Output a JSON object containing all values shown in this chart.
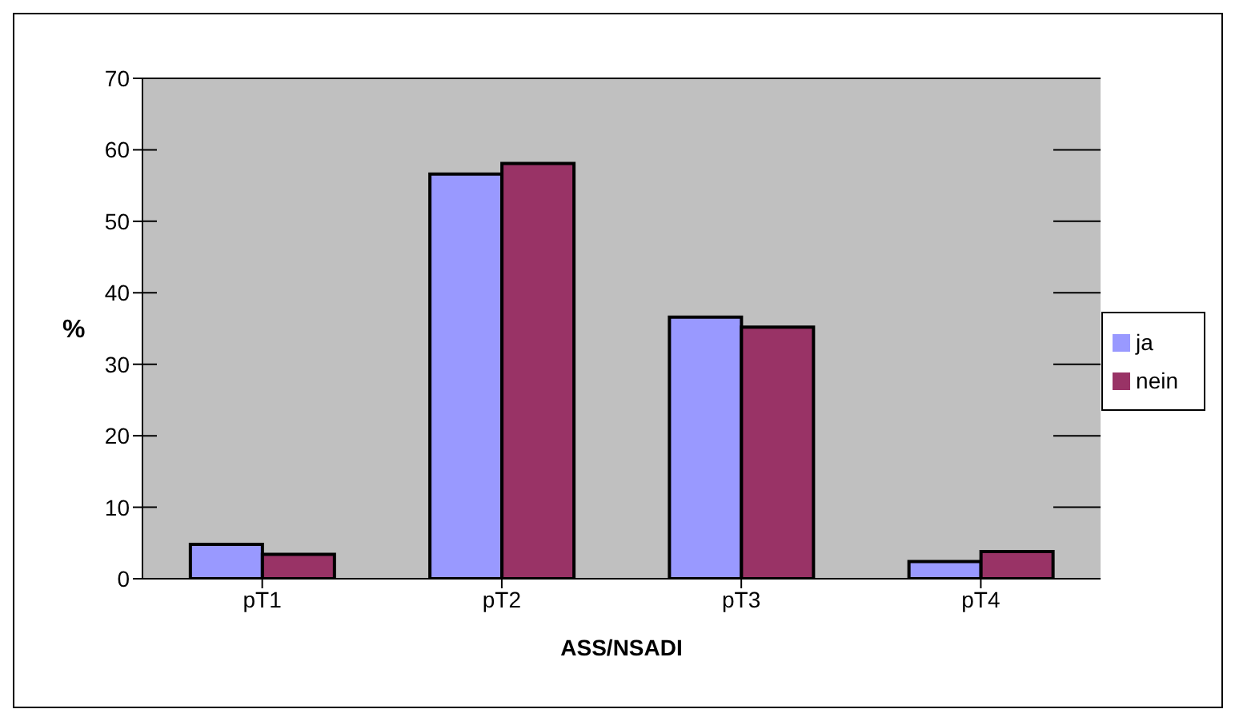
{
  "chart_data": {
    "type": "bar",
    "xlabel": "ASS/NSADI",
    "ylabel": "%",
    "categories": [
      "pT1",
      "pT2",
      "pT3",
      "pT4"
    ],
    "series": [
      {
        "name": "ja",
        "color": "#9999ff",
        "values": [
          4.8,
          56.6,
          36.6,
          2.4
        ]
      },
      {
        "name": "nein",
        "color": "#993366",
        "values": [
          3.4,
          58.1,
          35.2,
          3.8
        ]
      }
    ],
    "ylim": [
      0,
      70
    ],
    "yticks": [
      0,
      10,
      20,
      30,
      40,
      50,
      60,
      70
    ],
    "grid": "y",
    "legend": "right"
  }
}
